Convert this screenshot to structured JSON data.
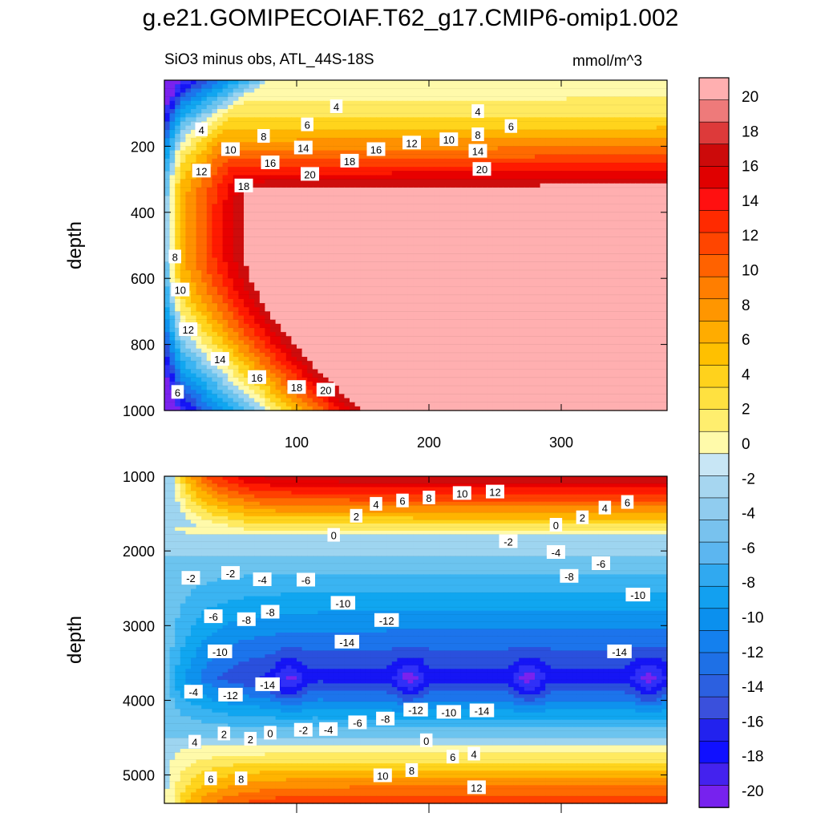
{
  "title": "g.e21.GOMIPECOIAF.T62_g17.CMIP6-omip1.002",
  "subtitle_left": "SiO3 minus obs, ATL_44S-18S",
  "subtitle_right": "mmol/m^3",
  "chart_data": [
    {
      "type": "heatmap",
      "panel": "upper",
      "ylabel": "depth",
      "xlabel": "",
      "xlim": [
        0,
        380
      ],
      "ylim": [
        1000,
        0
      ],
      "xticks": [
        "100",
        "200",
        "300"
      ],
      "xtick_values": [
        100,
        200,
        300
      ],
      "yticks": [
        "200",
        "400",
        "600",
        "800",
        "1000"
      ],
      "ytick_values": [
        200,
        400,
        600,
        800,
        1000
      ],
      "contour_labels": [
        {
          "text": "4",
          "x": 28,
          "y": 150
        },
        {
          "text": "6",
          "x": 108,
          "y": 135
        },
        {
          "text": "4",
          "x": 130,
          "y": 80
        },
        {
          "text": "8",
          "x": 75,
          "y": 170
        },
        {
          "text": "10",
          "x": 50,
          "y": 210
        },
        {
          "text": "14",
          "x": 105,
          "y": 205
        },
        {
          "text": "16",
          "x": 80,
          "y": 250
        },
        {
          "text": "18",
          "x": 140,
          "y": 245
        },
        {
          "text": "20",
          "x": 110,
          "y": 285
        },
        {
          "text": "16",
          "x": 160,
          "y": 210
        },
        {
          "text": "12",
          "x": 187,
          "y": 190
        },
        {
          "text": "10",
          "x": 215,
          "y": 180
        },
        {
          "text": "8",
          "x": 237,
          "y": 165
        },
        {
          "text": "4",
          "x": 237,
          "y": 95
        },
        {
          "text": "6",
          "x": 262,
          "y": 140
        },
        {
          "text": "14",
          "x": 237,
          "y": 215
        },
        {
          "text": "20",
          "x": 240,
          "y": 270
        },
        {
          "text": "12",
          "x": 28,
          "y": 275
        },
        {
          "text": "18",
          "x": 60,
          "y": 320
        },
        {
          "text": "8",
          "x": 8,
          "y": 535
        },
        {
          "text": "10",
          "x": 12,
          "y": 635
        },
        {
          "text": "12",
          "x": 18,
          "y": 755
        },
        {
          "text": "14",
          "x": 42,
          "y": 845
        },
        {
          "text": "16",
          "x": 70,
          "y": 900
        },
        {
          "text": "18",
          "x": 100,
          "y": 930
        },
        {
          "text": "20",
          "x": 122,
          "y": 938
        },
        {
          "text": "6",
          "x": 10,
          "y": 945
        }
      ]
    },
    {
      "type": "heatmap",
      "panel": "lower",
      "ylabel": "depth",
      "xlabel": "",
      "xlim": [
        0,
        380
      ],
      "ylim": [
        5380,
        1000
      ],
      "yticks": [
        "1000",
        "2000",
        "3000",
        "4000",
        "5000"
      ],
      "ytick_values": [
        1000,
        2000,
        3000,
        4000,
        5000
      ],
      "contour_labels": [
        {
          "text": "10",
          "x": 225,
          "y": 1230
        },
        {
          "text": "12",
          "x": 250,
          "y": 1210
        },
        {
          "text": "8",
          "x": 200,
          "y": 1290
        },
        {
          "text": "6",
          "x": 180,
          "y": 1330
        },
        {
          "text": "4",
          "x": 160,
          "y": 1375
        },
        {
          "text": "2",
          "x": 145,
          "y": 1535
        },
        {
          "text": "0",
          "x": 128,
          "y": 1790
        },
        {
          "text": "-2",
          "x": 260,
          "y": 1875
        },
        {
          "text": "0",
          "x": 296,
          "y": 1655
        },
        {
          "text": "2",
          "x": 316,
          "y": 1555
        },
        {
          "text": "4",
          "x": 333,
          "y": 1425
        },
        {
          "text": "6",
          "x": 350,
          "y": 1350
        },
        {
          "text": "-4",
          "x": 296,
          "y": 2020
        },
        {
          "text": "-6",
          "x": 330,
          "y": 2170
        },
        {
          "text": "-8",
          "x": 306,
          "y": 2340
        },
        {
          "text": "-10",
          "x": 358,
          "y": 2590
        },
        {
          "text": "-2",
          "x": 20,
          "y": 2365
        },
        {
          "text": "-2",
          "x": 50,
          "y": 2300
        },
        {
          "text": "-4",
          "x": 74,
          "y": 2385
        },
        {
          "text": "-6",
          "x": 107,
          "y": 2390
        },
        {
          "text": "-10",
          "x": 135,
          "y": 2700
        },
        {
          "text": "-6",
          "x": 37,
          "y": 2880
        },
        {
          "text": "-8",
          "x": 62,
          "y": 2920
        },
        {
          "text": "-8",
          "x": 80,
          "y": 2820
        },
        {
          "text": "-12",
          "x": 168,
          "y": 2930
        },
        {
          "text": "-14",
          "x": 138,
          "y": 3220
        },
        {
          "text": "-14",
          "x": 344,
          "y": 3350
        },
        {
          "text": "-10",
          "x": 42,
          "y": 3350
        },
        {
          "text": "-12",
          "x": 50,
          "y": 3930
        },
        {
          "text": "-4",
          "x": 22,
          "y": 3890
        },
        {
          "text": "-14",
          "x": 78,
          "y": 3790
        },
        {
          "text": "4",
          "x": 23,
          "y": 4560
        },
        {
          "text": "2",
          "x": 45,
          "y": 4450
        },
        {
          "text": "2",
          "x": 65,
          "y": 4520
        },
        {
          "text": "0",
          "x": 80,
          "y": 4440
        },
        {
          "text": "-2",
          "x": 105,
          "y": 4400
        },
        {
          "text": "-4",
          "x": 124,
          "y": 4390
        },
        {
          "text": "-6",
          "x": 146,
          "y": 4300
        },
        {
          "text": "-8",
          "x": 167,
          "y": 4250
        },
        {
          "text": "-12",
          "x": 190,
          "y": 4130
        },
        {
          "text": "-10",
          "x": 215,
          "y": 4160
        },
        {
          "text": "-14",
          "x": 240,
          "y": 4140
        },
        {
          "text": "0",
          "x": 198,
          "y": 4540
        },
        {
          "text": "6",
          "x": 218,
          "y": 4760
        },
        {
          "text": "4",
          "x": 234,
          "y": 4720
        },
        {
          "text": "8",
          "x": 187,
          "y": 4940
        },
        {
          "text": "10",
          "x": 165,
          "y": 5010
        },
        {
          "text": "12",
          "x": 236,
          "y": 5170
        },
        {
          "text": "6",
          "x": 35,
          "y": 5050
        },
        {
          "text": "8",
          "x": 58,
          "y": 5050
        }
      ]
    }
  ],
  "colorbar": {
    "labels": [
      "20",
      "18",
      "16",
      "14",
      "12",
      "10",
      "8",
      "6",
      "4",
      "2",
      "0",
      "-2",
      "-4",
      "-6",
      "-8",
      "-10",
      "-12",
      "-14",
      "-16",
      "-18",
      "-20"
    ],
    "colors": [
      "#FFAFB0",
      "#EE7A7A",
      "#DD3A3A",
      "#CC0A0A",
      "#E00000",
      "#FF1010",
      "#FF2A00",
      "#FF4500",
      "#FF6200",
      "#FF7E00",
      "#FF9600",
      "#FFAC00",
      "#FFC000",
      "#FFD21C",
      "#FFE140",
      "#FFEE6E",
      "#FFFAAA",
      "#C8E6F5",
      "#A6D6F0",
      "#90CCEF",
      "#78C2EE",
      "#5CB6F0",
      "#30A9F0",
      "#12A0F0",
      "#0B90EE",
      "#1480EE",
      "#1E70E6",
      "#2C60E0",
      "#3A50DC",
      "#2222EE",
      "#1010FF",
      "#4422EE",
      "#7722EE"
    ]
  }
}
